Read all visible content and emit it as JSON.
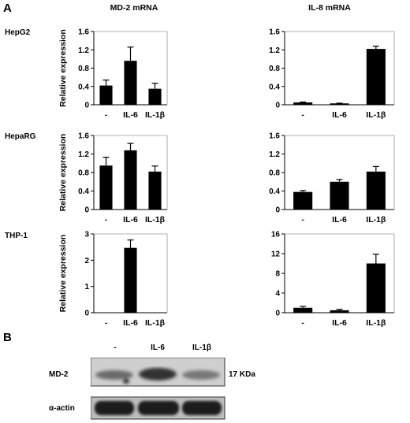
{
  "figure": {
    "panel_a": "A",
    "panel_b": "B",
    "col_titles": [
      "MD-2 mRNA",
      "IL-8 mRNA"
    ],
    "row_labels": [
      "HepG2",
      "HepaRG",
      "THP-1"
    ],
    "ylabel": "Relative expression"
  },
  "blot": {
    "lanes": [
      "-",
      "IL-6",
      "IL-1β"
    ],
    "rows": [
      "MD-2",
      "α-actin"
    ],
    "size_marker": "17 KDa"
  },
  "chart_data": [
    {
      "type": "bar",
      "cell_line": "HepG2",
      "gene": "MD-2 mRNA",
      "categories": [
        "-",
        "IL-6",
        "IL-1β"
      ],
      "values": [
        0.42,
        0.96,
        0.35
      ],
      "errors": [
        0.12,
        0.3,
        0.12
      ],
      "ylabel": "Relative expression",
      "ylim": [
        0,
        1.6
      ],
      "yticks": [
        "0",
        "0.4",
        "0.8",
        "1.2",
        "1.6"
      ]
    },
    {
      "type": "bar",
      "cell_line": "HepG2",
      "gene": "IL-8 mRNA",
      "categories": [
        "-",
        "IL-6",
        "IL-1β"
      ],
      "values": [
        0.05,
        0.03,
        1.22
      ],
      "errors": [
        0.01,
        0.005,
        0.06
      ],
      "ylabel": "",
      "ylim": [
        0,
        1.6
      ],
      "yticks": [
        "0",
        "0.4",
        "0.8",
        "1.2",
        "1.6"
      ]
    },
    {
      "type": "bar",
      "cell_line": "HepaRG",
      "gene": "MD-2 mRNA",
      "categories": [
        "-",
        "IL-6",
        "IL-1β"
      ],
      "values": [
        0.95,
        1.28,
        0.82
      ],
      "errors": [
        0.18,
        0.15,
        0.12
      ],
      "ylabel": "Relative expression",
      "ylim": [
        0,
        1.6
      ],
      "yticks": [
        "0",
        "0.4",
        "0.8",
        "1.2",
        "1.6"
      ]
    },
    {
      "type": "bar",
      "cell_line": "HepaRG",
      "gene": "IL-8 mRNA",
      "categories": [
        "-",
        "IL-6",
        "IL-1β"
      ],
      "values": [
        0.38,
        0.6,
        0.82
      ],
      "errors": [
        0.03,
        0.05,
        0.11
      ],
      "ylabel": "",
      "ylim": [
        0,
        1.6
      ],
      "yticks": [
        "0",
        "0.4",
        "0.8",
        "1.2",
        "1.6"
      ]
    },
    {
      "type": "bar",
      "cell_line": "THP-1",
      "gene": "MD-2 mRNA",
      "categories": [
        "-",
        "IL-6",
        "IL-1β"
      ],
      "values": [
        0,
        2.47,
        0
      ],
      "errors": [
        0,
        0.3,
        0
      ],
      "ylabel": "Relative expression",
      "ylim": [
        0,
        3
      ],
      "yticks": [
        "0",
        "1",
        "2",
        "3"
      ]
    },
    {
      "type": "bar",
      "cell_line": "THP-1",
      "gene": "IL-8 mRNA",
      "categories": [
        "-",
        "IL-6",
        "IL-1β"
      ],
      "values": [
        1.0,
        0.5,
        10.0
      ],
      "errors": [
        0.3,
        0.2,
        1.9
      ],
      "ylabel": "",
      "ylim": [
        0,
        16
      ],
      "yticks": [
        "0",
        "4",
        "8",
        "12",
        "16"
      ]
    }
  ]
}
